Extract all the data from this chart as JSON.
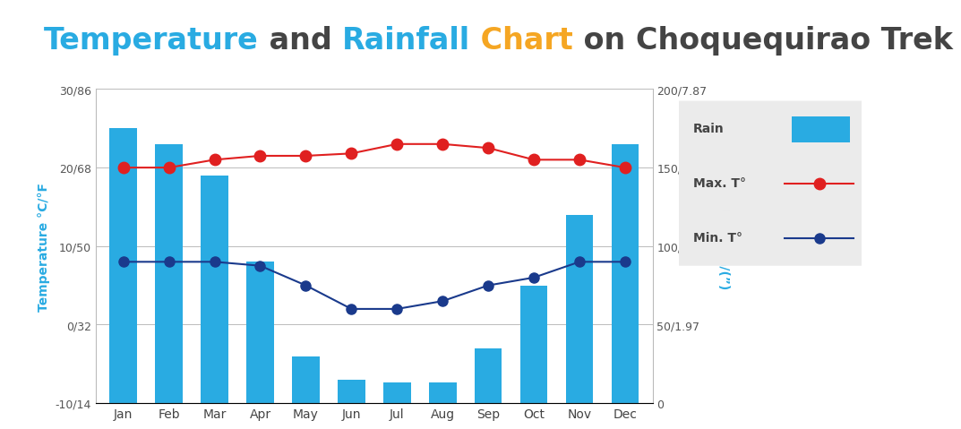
{
  "months": [
    "Jan",
    "Feb",
    "Mar",
    "Apr",
    "May",
    "Jun",
    "Jul",
    "Aug",
    "Sep",
    "Oct",
    "Nov",
    "Dec"
  ],
  "rainfall_mm": [
    175,
    165,
    145,
    90,
    30,
    15,
    13,
    13,
    35,
    75,
    120,
    165
  ],
  "max_temp": [
    20.0,
    20.0,
    21.0,
    21.5,
    21.5,
    21.8,
    23.0,
    23.0,
    22.5,
    21.0,
    21.0,
    20.0
  ],
  "min_temp": [
    8.0,
    8.0,
    8.0,
    7.5,
    5.0,
    2.0,
    2.0,
    3.0,
    5.0,
    6.0,
    8.0,
    8.0
  ],
  "bar_color": "#29ABE2",
  "max_line_color": "#E02020",
  "min_line_color": "#1A3A8C",
  "title_parts": [
    {
      "text": "Temperature",
      "color": "#29ABE2"
    },
    {
      "text": " and ",
      "color": "#444444"
    },
    {
      "text": "Rainfall",
      "color": "#29ABE2"
    },
    {
      "text": " Chart",
      "color": "#F5A623"
    },
    {
      "text": " on ",
      "color": "#444444"
    },
    {
      "text": "Choquequirao Trek",
      "color": "#444444"
    }
  ],
  "ylabel_left": "Temperature °C/°F",
  "ylabel_right": "Rain mm/(”)",
  "ylim_left": [
    -10,
    30
  ],
  "ylim_right": [
    0,
    200
  ],
  "yticks_left": [
    -10,
    0,
    10,
    20,
    30
  ],
  "ytick_labels_left": [
    "-10/14",
    "0/32",
    "10/50",
    "20/68",
    "30/86"
  ],
  "yticks_right": [
    0,
    50,
    100,
    150,
    200
  ],
  "ytick_labels_right": [
    "0",
    "50/1.97",
    "100/3.94",
    "150/5.91",
    "200/7.87"
  ],
  "bg_color": "#FFFFFF",
  "legend_bg": "#EBEBEB",
  "title_fontsize": 24
}
